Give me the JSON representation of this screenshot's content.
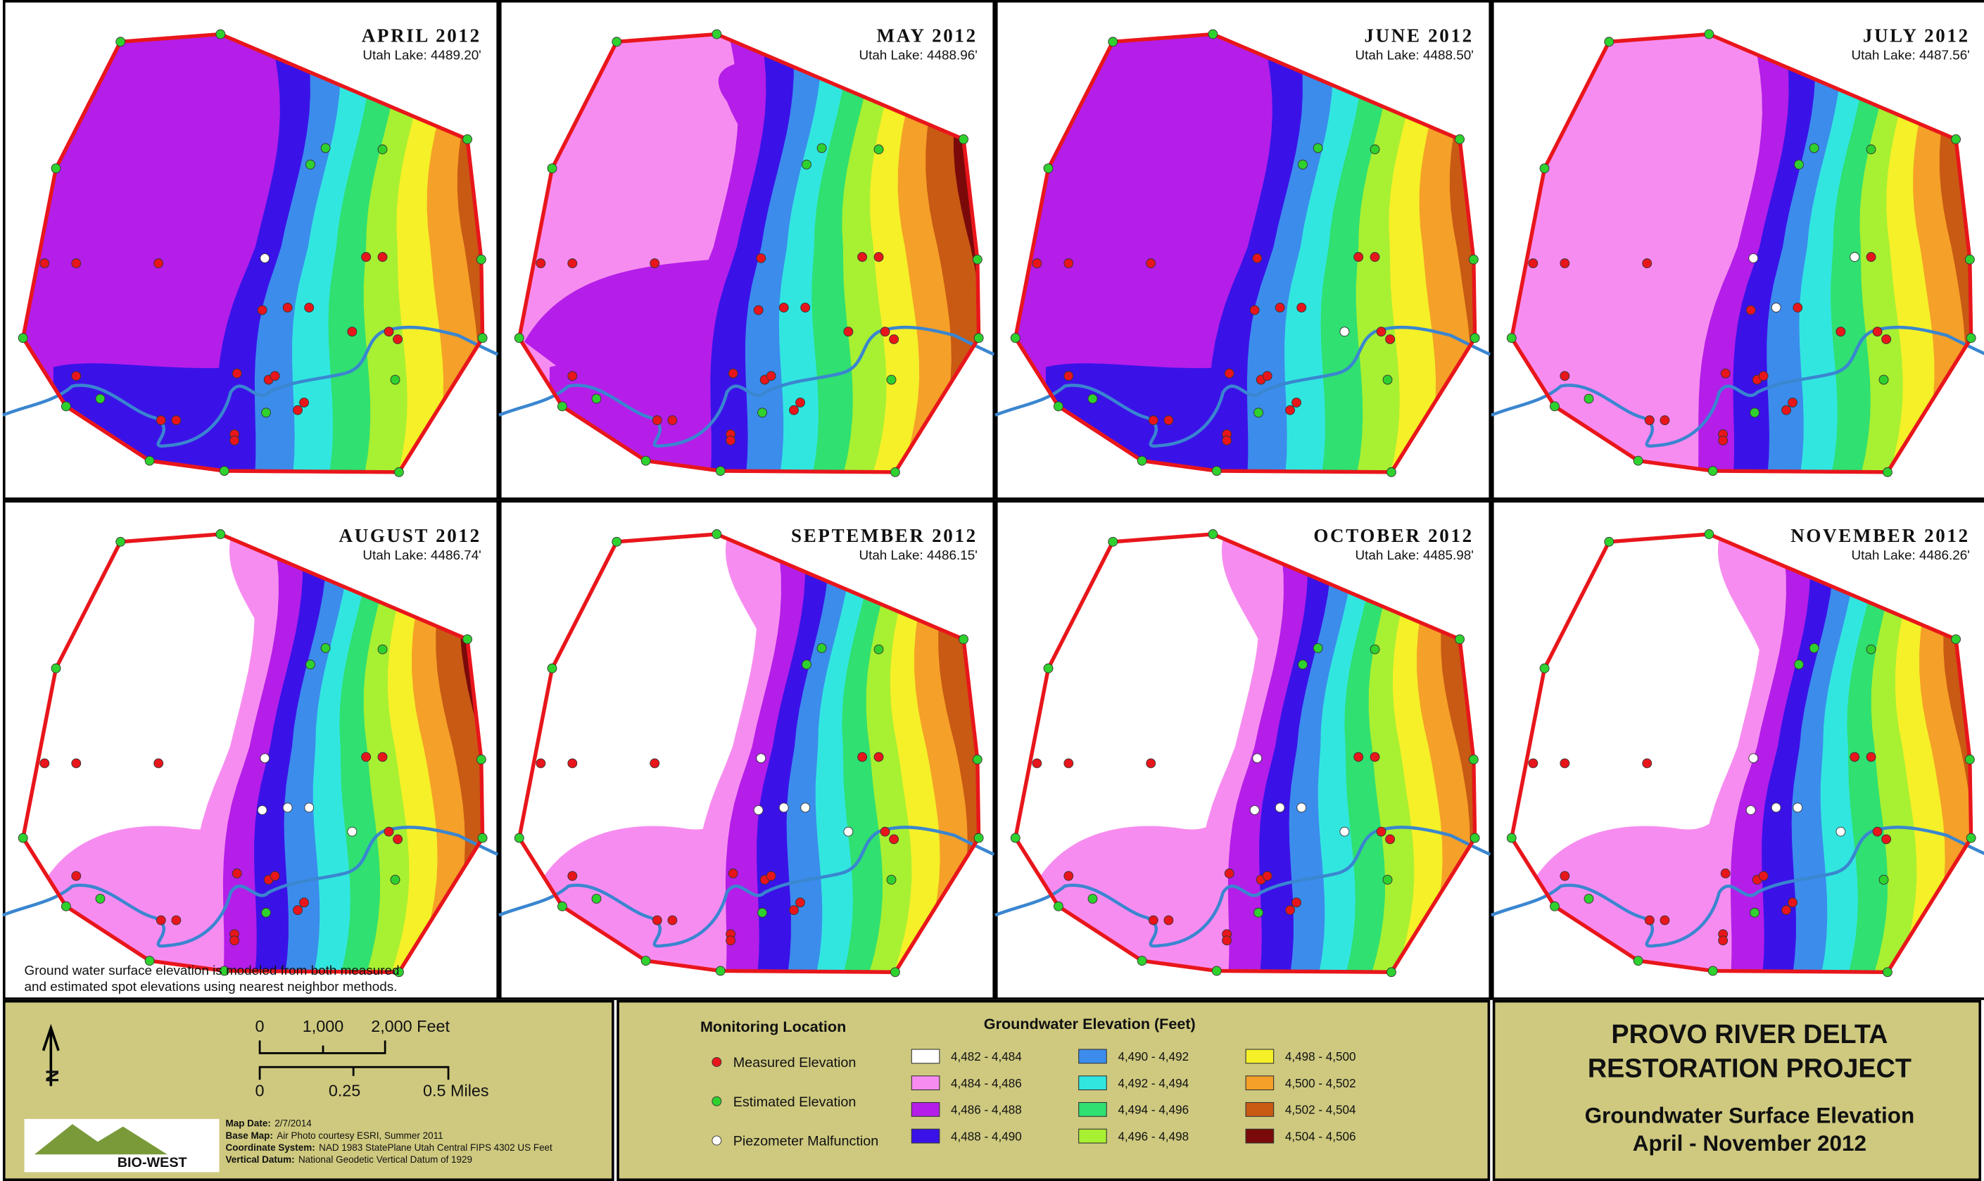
{
  "panels": [
    {
      "title": "APRIL 2012",
      "lake": "Utah Lake: 4489.20'"
    },
    {
      "title": "MAY 2012",
      "lake": "Utah Lake: 4488.96'"
    },
    {
      "title": "JUNE 2012",
      "lake": "Utah Lake: 4488.50'"
    },
    {
      "title": "JULY 2012",
      "lake": "Utah Lake: 4487.56'"
    },
    {
      "title": "AUGUST 2012",
      "lake": "Utah Lake: 4486.74'"
    },
    {
      "title": "SEPTEMBER 2012",
      "lake": "Utah Lake: 4486.15'"
    },
    {
      "title": "OCTOBER 2012",
      "lake": "Utah Lake: 4485.98'"
    },
    {
      "title": "NOVEMBER 2012",
      "lake": "Utah Lake: 4486.26'"
    }
  ],
  "note_lines": [
    "Ground water surface elevation is modeled from both measured",
    "and estimated spot elevations using nearest neighbor methods."
  ],
  "scale": {
    "feet_labels": [
      "0",
      "1,000",
      "2,000 Feet"
    ],
    "mile_labels": [
      "0",
      "0.25",
      "0.5 Miles"
    ]
  },
  "north": "N",
  "logo": "BIO-WEST",
  "map_info": [
    {
      "label": "Map Date:",
      "text": "2/7/2014"
    },
    {
      "label": "Base Map:",
      "text": "Air Photo courtesy ESRI, Summer 2011"
    },
    {
      "label": "Coordinate System:",
      "text": "NAD 1983 StatePlane Utah Central FIPS 4302 US Feet"
    },
    {
      "label": "Vertical Datum:",
      "text": "National Geodetic Vertical Datum of 1929"
    }
  ],
  "monitoring": {
    "title": "Monitoring Location",
    "items": [
      {
        "label": "Measured Elevation",
        "color": "#e8161b"
      },
      {
        "label": "Estimated Elevation",
        "color": "#2fd12f"
      },
      {
        "label": "Piezometer Malfunction",
        "color": "#ffffff"
      }
    ]
  },
  "elevation_legend": {
    "title": "Groundwater Elevation (Feet)",
    "items": [
      {
        "label": "4,482 - 4,484",
        "color": "#ffffff"
      },
      {
        "label": "4,484 - 4,486",
        "color": "#f78cf0"
      },
      {
        "label": "4,486 - 4,488",
        "color": "#b41ee8"
      },
      {
        "label": "4,488 - 4,490",
        "color": "#3a12e8"
      },
      {
        "label": "4,490 - 4,492",
        "color": "#3c8cec"
      },
      {
        "label": "4,492 - 4,494",
        "color": "#32e6e0"
      },
      {
        "label": "4,494 - 4,496",
        "color": "#30e070"
      },
      {
        "label": "4,496 - 4,498",
        "color": "#a8f032"
      },
      {
        "label": "4,498 - 4,500",
        "color": "#f5f028"
      },
      {
        "label": "4,500 - 4,502",
        "color": "#f5a028"
      },
      {
        "label": "4,502 - 4,504",
        "color": "#c85a14"
      },
      {
        "label": "4,504 - 4,506",
        "color": "#7a0a0a"
      }
    ]
  },
  "project": {
    "title_lines": [
      "PROVO RIVER DELTA",
      "RESTORATION PROJECT"
    ],
    "subtitle_lines": [
      "Groundwater Surface Elevation",
      "April - November 2012"
    ]
  }
}
